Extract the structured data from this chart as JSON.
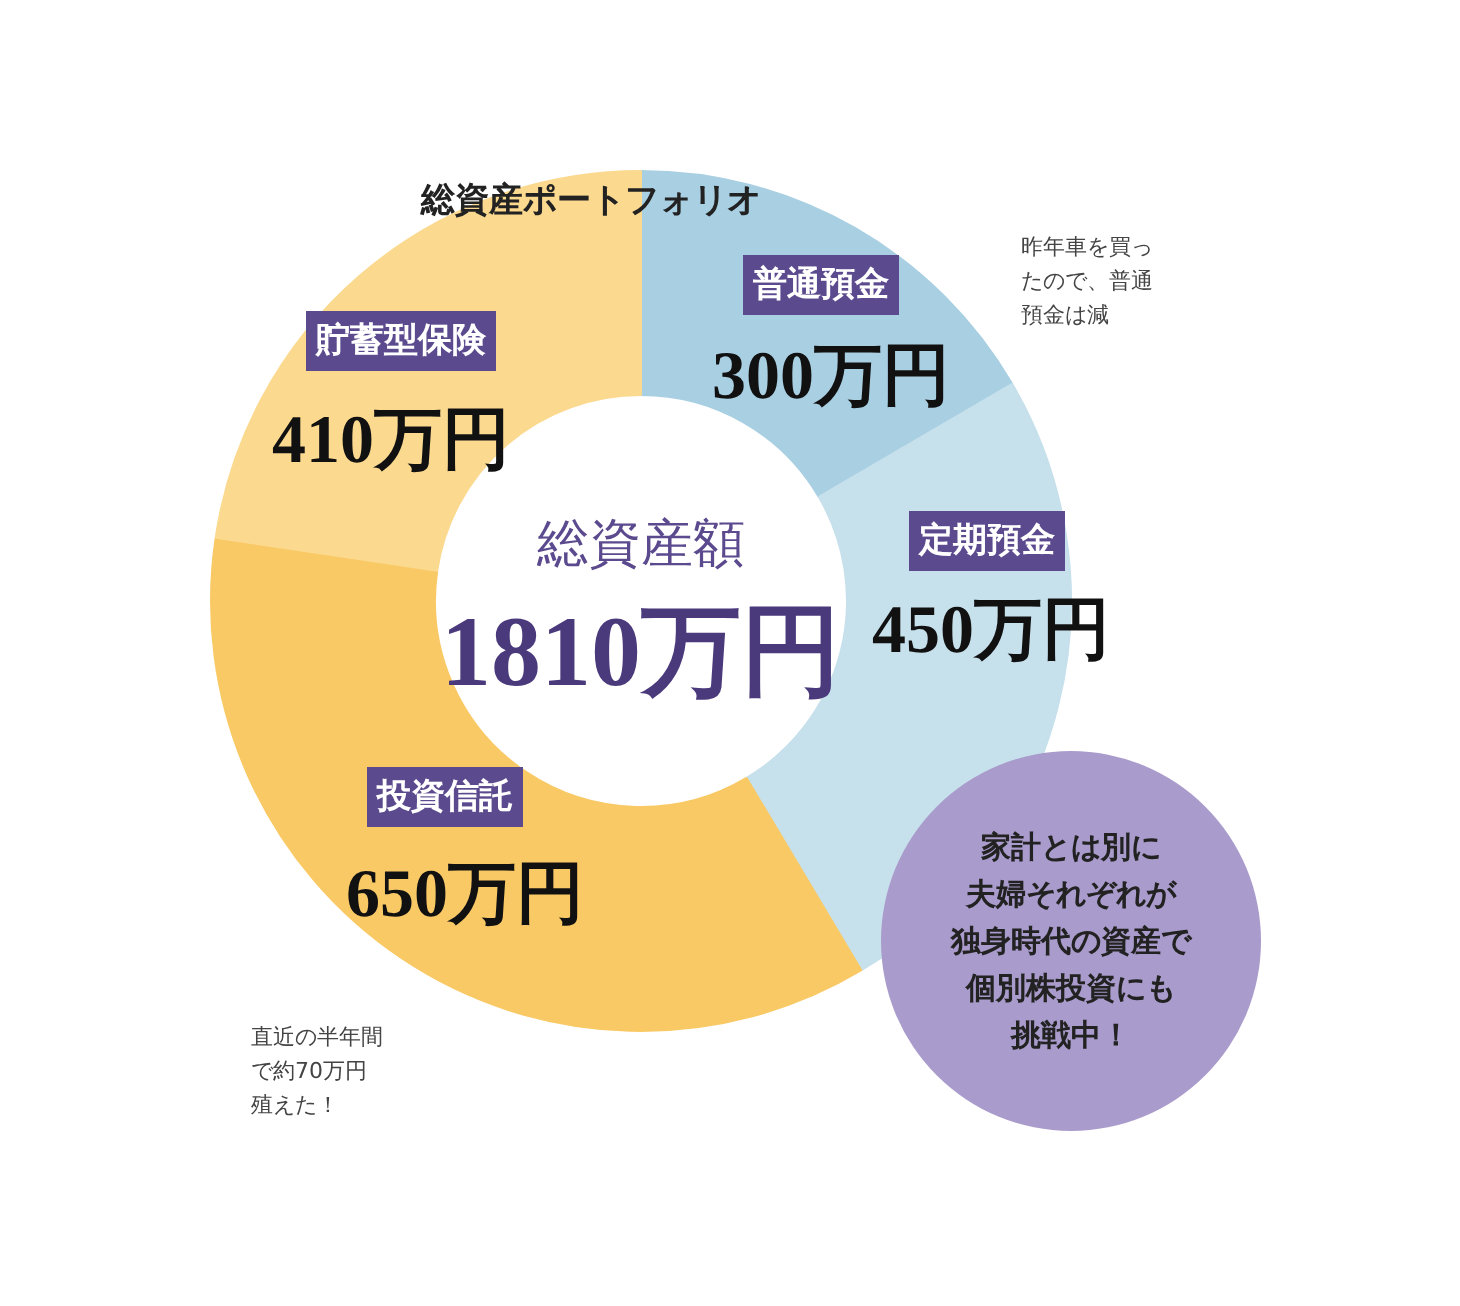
{
  "chart_data": {
    "type": "donut",
    "title": "総資産ポートフォリオ",
    "categories": [
      "普通預金",
      "定期預金",
      "投資信託",
      "貯蓄型保険"
    ],
    "values": [
      300,
      450,
      650,
      410
    ],
    "colors": [
      "#a9cfe2",
      "#c6e0ec",
      "#f9c965",
      "#fbd98f"
    ],
    "value_labels": [
      "300万円",
      "450万円",
      "650万円",
      "410万円"
    ],
    "annotations": [
      "総資産額",
      "1810万円",
      "昨年車を買ったので、普通預金は減",
      "直近の半年間で約70万円殖えた！",
      "家計とは別に夫婦それぞれが独身時代の資産で個別株投資にも挑戦中！"
    ]
  }
}
